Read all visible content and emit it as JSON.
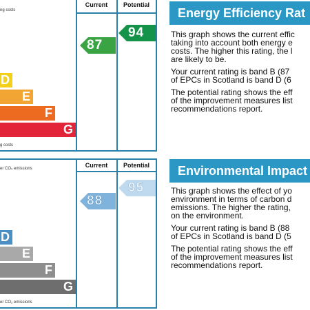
{
  "energy": {
    "top_caption": "ng costs",
    "bottom_caption": "g costs",
    "current_header": "Current",
    "potential_header": "Potential",
    "current_value": "87",
    "potential_value": "94",
    "bands": [
      {
        "letter": "D",
        "color": "#f3d11b"
      },
      {
        "letter": "E",
        "color": "#f2a533"
      },
      {
        "letter": "F",
        "color": "#ec6b21"
      },
      {
        "letter": "G",
        "color": "#e3253a"
      }
    ],
    "current_color": "#3aa445",
    "potential_color": "#16934a",
    "title": "Energy Efficiency Rat",
    "p1_lines": [
      "This graph shows the current effic",
      "taking into account both energy e",
      "costs. The higher this rating, the l",
      "are likely to be."
    ],
    "p2_lines": [
      "Your current rating is band B (87",
      "of EPCs in Scotland is band D (6"
    ],
    "p3_lines": [
      "The potential rating shows the eff",
      "of the improvement measures list",
      "recommendations report."
    ]
  },
  "environment": {
    "top_caption": "er CO₂ emissions",
    "bottom_caption": "er CO₂ emissions",
    "current_header": "Current",
    "potential_header": "Potential",
    "current_value": "88",
    "potential_value": "95",
    "bands": [
      {
        "letter": "D",
        "color": "#4a90c4"
      },
      {
        "letter": "E",
        "color": "#a9a9a9"
      },
      {
        "letter": "F",
        "color": "#8e8e8e"
      },
      {
        "letter": "G",
        "color": "#6e6e6e"
      }
    ],
    "current_color": "#7fb3dc",
    "potential_color": "#bfd9ee",
    "title": "Environmental Impact",
    "p1_lines": [
      "This graph shows the effect of yo",
      "environment in terms of carbon d",
      "emissions. The higher the rating,",
      "on the environment."
    ],
    "p2_lines": [
      "Your current rating is band B (88",
      "of EPCs in Scotland is band D (5"
    ],
    "p3_lines": [
      "The potential rating shows the eff",
      "of the improvement measures list",
      "recommendations report."
    ]
  }
}
